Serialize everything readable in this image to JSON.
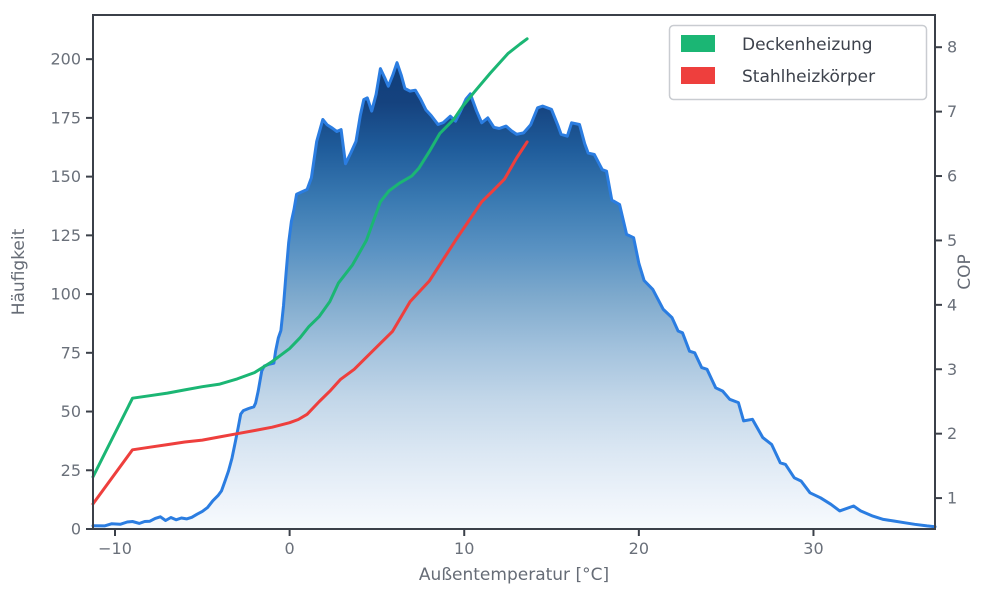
{
  "colors": {
    "background": "#ffffff",
    "frame": "#3b4049",
    "tick_label": "#6a707a",
    "axis_label": "#666c76",
    "legend_text": "#3d424c",
    "legend_border": "#c9ccd1",
    "histogram_line": "#2b7de1",
    "green_line": "#1bb674",
    "red_line": "#ee3f3d"
  },
  "chart_data": {
    "type": "area",
    "title": "",
    "xlabel": "Außentemperatur [°C]",
    "ylabel_left": "Häufigkeit",
    "ylabel_right": "COP",
    "xlim": [
      -11.26,
      36.96
    ],
    "ylim_left": [
      0,
      218.8
    ],
    "ylim_right": [
      0.52,
      8.5
    ],
    "grid": false,
    "x_tick_values": [
      -10,
      0,
      10,
      20,
      30
    ],
    "x_tick_labels": [
      "−10",
      "0",
      "10",
      "20",
      "30"
    ],
    "left_tick_values": [
      0,
      25,
      50,
      75,
      100,
      125,
      150,
      175,
      200
    ],
    "left_tick_labels": [
      "0",
      "25",
      "50",
      "75",
      "100",
      "125",
      "150",
      "175",
      "200"
    ],
    "right_tick_values": [
      1,
      2,
      3,
      4,
      5,
      6,
      7,
      8
    ],
    "right_tick_labels": [
      "1",
      "2",
      "3",
      "4",
      "5",
      "6",
      "7",
      "8"
    ],
    "legend": {
      "position": "upper right"
    },
    "histogram": {
      "name": "Häufigkeit",
      "axis": "left",
      "line_color": "#2b7de1",
      "gradient_stops": [
        [
          "0%",
          "#083a78"
        ],
        [
          "17%",
          "#15427e"
        ],
        [
          "26%",
          "#1f5c9b"
        ],
        [
          "36%",
          "#3a7ab2"
        ],
        [
          "46%",
          "#5b93c3"
        ],
        [
          "55%",
          "#7faacd"
        ],
        [
          "65%",
          "#a3c2dd"
        ],
        [
          "75%",
          "#c3d7e9"
        ],
        [
          "85%",
          "#dbe7f3"
        ],
        [
          "94%",
          "#edf3fa"
        ],
        [
          "100%",
          "#f7fafd"
        ]
      ],
      "points": [
        [
          -11.26,
          1.4
        ],
        [
          -10.6,
          1.3
        ],
        [
          -10.2,
          2.2
        ],
        [
          -9.7,
          2.0
        ],
        [
          -9.3,
          3.0
        ],
        [
          -9.0,
          3.2
        ],
        [
          -8.6,
          2.4
        ],
        [
          -8.3,
          3.2
        ],
        [
          -8.0,
          3.3
        ],
        [
          -7.7,
          4.5
        ],
        [
          -7.4,
          5.2
        ],
        [
          -7.1,
          3.6
        ],
        [
          -6.8,
          4.9
        ],
        [
          -6.5,
          3.9
        ],
        [
          -6.2,
          4.7
        ],
        [
          -5.9,
          4.3
        ],
        [
          -5.6,
          5.0
        ],
        [
          -5.3,
          6.3
        ],
        [
          -5.0,
          7.5
        ],
        [
          -4.7,
          9.1
        ],
        [
          -4.4,
          12.0
        ],
        [
          -4.1,
          14.2
        ],
        [
          -3.9,
          16.2
        ],
        [
          -3.7,
          20.4
        ],
        [
          -3.5,
          24.7
        ],
        [
          -3.3,
          30.2
        ],
        [
          -3.1,
          37.4
        ],
        [
          -2.95,
          43.0
        ],
        [
          -2.8,
          48.9
        ],
        [
          -2.65,
          50.4
        ],
        [
          -2.35,
          51.3
        ],
        [
          -2.05,
          52.0
        ],
        [
          -1.95,
          53.6
        ],
        [
          -1.8,
          58.7
        ],
        [
          -1.6,
          67.2
        ],
        [
          -1.45,
          69.4
        ],
        [
          -1.15,
          70.2
        ],
        [
          -0.9,
          70.6
        ],
        [
          -0.8,
          75.7
        ],
        [
          -0.65,
          81.3
        ],
        [
          -0.5,
          84.5
        ],
        [
          -0.35,
          95.0
        ],
        [
          -0.2,
          109.0
        ],
        [
          -0.05,
          122.0
        ],
        [
          0.1,
          131.0
        ],
        [
          0.25,
          136.0
        ],
        [
          0.4,
          142.5
        ],
        [
          0.7,
          143.5
        ],
        [
          1.0,
          144.5
        ],
        [
          1.25,
          149.5
        ],
        [
          1.55,
          165.0
        ],
        [
          1.9,
          174.3
        ],
        [
          2.15,
          172.0
        ],
        [
          2.45,
          170.6
        ],
        [
          2.7,
          169.2
        ],
        [
          2.95,
          170.0
        ],
        [
          3.2,
          155.5
        ],
        [
          3.5,
          160.0
        ],
        [
          3.8,
          165.0
        ],
        [
          4.05,
          176.0
        ],
        [
          4.25,
          182.8
        ],
        [
          4.45,
          183.5
        ],
        [
          4.7,
          177.9
        ],
        [
          4.95,
          185.0
        ],
        [
          5.2,
          196.0
        ],
        [
          5.45,
          192.0
        ],
        [
          5.65,
          188.5
        ],
        [
          5.9,
          193.0
        ],
        [
          6.15,
          198.5
        ],
        [
          6.4,
          193.0
        ],
        [
          6.6,
          187.5
        ],
        [
          6.9,
          186.4
        ],
        [
          7.2,
          186.8
        ],
        [
          7.5,
          183.0
        ],
        [
          7.8,
          178.5
        ],
        [
          8.1,
          176.0
        ],
        [
          8.5,
          172.2
        ],
        [
          8.8,
          173.0
        ],
        [
          9.2,
          175.7
        ],
        [
          9.5,
          173.6
        ],
        [
          9.8,
          178.0
        ],
        [
          10.1,
          183.0
        ],
        [
          10.35,
          185.2
        ],
        [
          10.7,
          178.0
        ],
        [
          11.0,
          172.9
        ],
        [
          11.35,
          175.0
        ],
        [
          11.7,
          171.0
        ],
        [
          12.0,
          170.5
        ],
        [
          12.4,
          171.5
        ],
        [
          12.7,
          169.5
        ],
        [
          13.0,
          168.0
        ],
        [
          13.4,
          168.6
        ],
        [
          13.8,
          172.0
        ],
        [
          14.2,
          179.3
        ],
        [
          14.5,
          180.0
        ],
        [
          15.0,
          178.6
        ],
        [
          15.35,
          172.0
        ],
        [
          15.55,
          168.0
        ],
        [
          15.9,
          167.2
        ],
        [
          16.15,
          172.9
        ],
        [
          16.6,
          172.2
        ],
        [
          16.9,
          164.0
        ],
        [
          17.1,
          160.0
        ],
        [
          17.45,
          159.4
        ],
        [
          17.9,
          153.0
        ],
        [
          18.15,
          152.3
        ],
        [
          18.45,
          140.0
        ],
        [
          18.9,
          138.1
        ],
        [
          19.3,
          125.4
        ],
        [
          19.7,
          124.0
        ],
        [
          20.0,
          113.0
        ],
        [
          20.3,
          105.8
        ],
        [
          20.8,
          102.0
        ],
        [
          21.4,
          93.5
        ],
        [
          21.9,
          90.0
        ],
        [
          22.25,
          84.3
        ],
        [
          22.5,
          83.5
        ],
        [
          22.9,
          75.7
        ],
        [
          23.2,
          75.0
        ],
        [
          23.6,
          68.7
        ],
        [
          23.9,
          68.0
        ],
        [
          24.4,
          60.1
        ],
        [
          24.8,
          58.7
        ],
        [
          25.2,
          55.2
        ],
        [
          25.7,
          53.8
        ],
        [
          26.0,
          46.0
        ],
        [
          26.5,
          46.7
        ],
        [
          27.1,
          38.9
        ],
        [
          27.6,
          36.0
        ],
        [
          28.1,
          28.2
        ],
        [
          28.4,
          27.5
        ],
        [
          28.9,
          21.8
        ],
        [
          29.3,
          20.4
        ],
        [
          29.8,
          15.4
        ],
        [
          30.4,
          13.3
        ],
        [
          31.0,
          10.5
        ],
        [
          31.5,
          7.7
        ],
        [
          32.3,
          9.8
        ],
        [
          32.7,
          7.7
        ],
        [
          33.4,
          5.5
        ],
        [
          34.0,
          4.1
        ],
        [
          34.6,
          3.4
        ],
        [
          35.2,
          2.7
        ],
        [
          35.8,
          2.0
        ],
        [
          36.5,
          1.3
        ],
        [
          36.96,
          1.0
        ]
      ]
    },
    "series": [
      {
        "name": "Deckenheizung",
        "axis": "right",
        "color": "#1bb674",
        "points": [
          [
            -11.26,
            1.33
          ],
          [
            -9.0,
            2.55
          ],
          [
            -8.0,
            2.59
          ],
          [
            -7.0,
            2.63
          ],
          [
            -6.0,
            2.68
          ],
          [
            -5.0,
            2.73
          ],
          [
            -4.0,
            2.77
          ],
          [
            -3.0,
            2.85
          ],
          [
            -2.0,
            2.95
          ],
          [
            -1.0,
            3.12
          ],
          [
            -0.5,
            3.22
          ],
          [
            0.0,
            3.32
          ],
          [
            0.6,
            3.49
          ],
          [
            1.1,
            3.66
          ],
          [
            1.7,
            3.82
          ],
          [
            2.3,
            4.05
          ],
          [
            2.8,
            4.34
          ],
          [
            3.6,
            4.62
          ],
          [
            4.4,
            5.0
          ],
          [
            5.2,
            5.6
          ],
          [
            5.7,
            5.77
          ],
          [
            6.3,
            5.89
          ],
          [
            7.0,
            6.0
          ],
          [
            7.4,
            6.12
          ],
          [
            8.0,
            6.38
          ],
          [
            8.6,
            6.66
          ],
          [
            9.4,
            6.88
          ],
          [
            9.9,
            7.08
          ],
          [
            10.6,
            7.31
          ],
          [
            11.5,
            7.6
          ],
          [
            12.5,
            7.9
          ],
          [
            13.2,
            8.05
          ],
          [
            13.6,
            8.13
          ]
        ]
      },
      {
        "name": "Stahlheizkörper",
        "axis": "right",
        "color": "#ee3f3d",
        "points": [
          [
            -11.26,
            0.91
          ],
          [
            -9.0,
            1.75
          ],
          [
            -8.0,
            1.79
          ],
          [
            -7.0,
            1.83
          ],
          [
            -6.0,
            1.87
          ],
          [
            -5.0,
            1.9
          ],
          [
            -4.0,
            1.95
          ],
          [
            -3.0,
            2.0
          ],
          [
            -2.0,
            2.05
          ],
          [
            -1.0,
            2.1
          ],
          [
            0.0,
            2.17
          ],
          [
            0.5,
            2.22
          ],
          [
            1.0,
            2.3
          ],
          [
            1.7,
            2.5
          ],
          [
            2.3,
            2.66
          ],
          [
            2.9,
            2.84
          ],
          [
            3.7,
            3.0
          ],
          [
            4.7,
            3.27
          ],
          [
            5.9,
            3.59
          ],
          [
            6.9,
            4.05
          ],
          [
            8.0,
            4.37
          ],
          [
            9.5,
            5.0
          ],
          [
            11.0,
            5.6
          ],
          [
            11.6,
            5.76
          ],
          [
            12.3,
            5.95
          ],
          [
            13.0,
            6.28
          ],
          [
            13.6,
            6.53
          ]
        ]
      }
    ]
  }
}
